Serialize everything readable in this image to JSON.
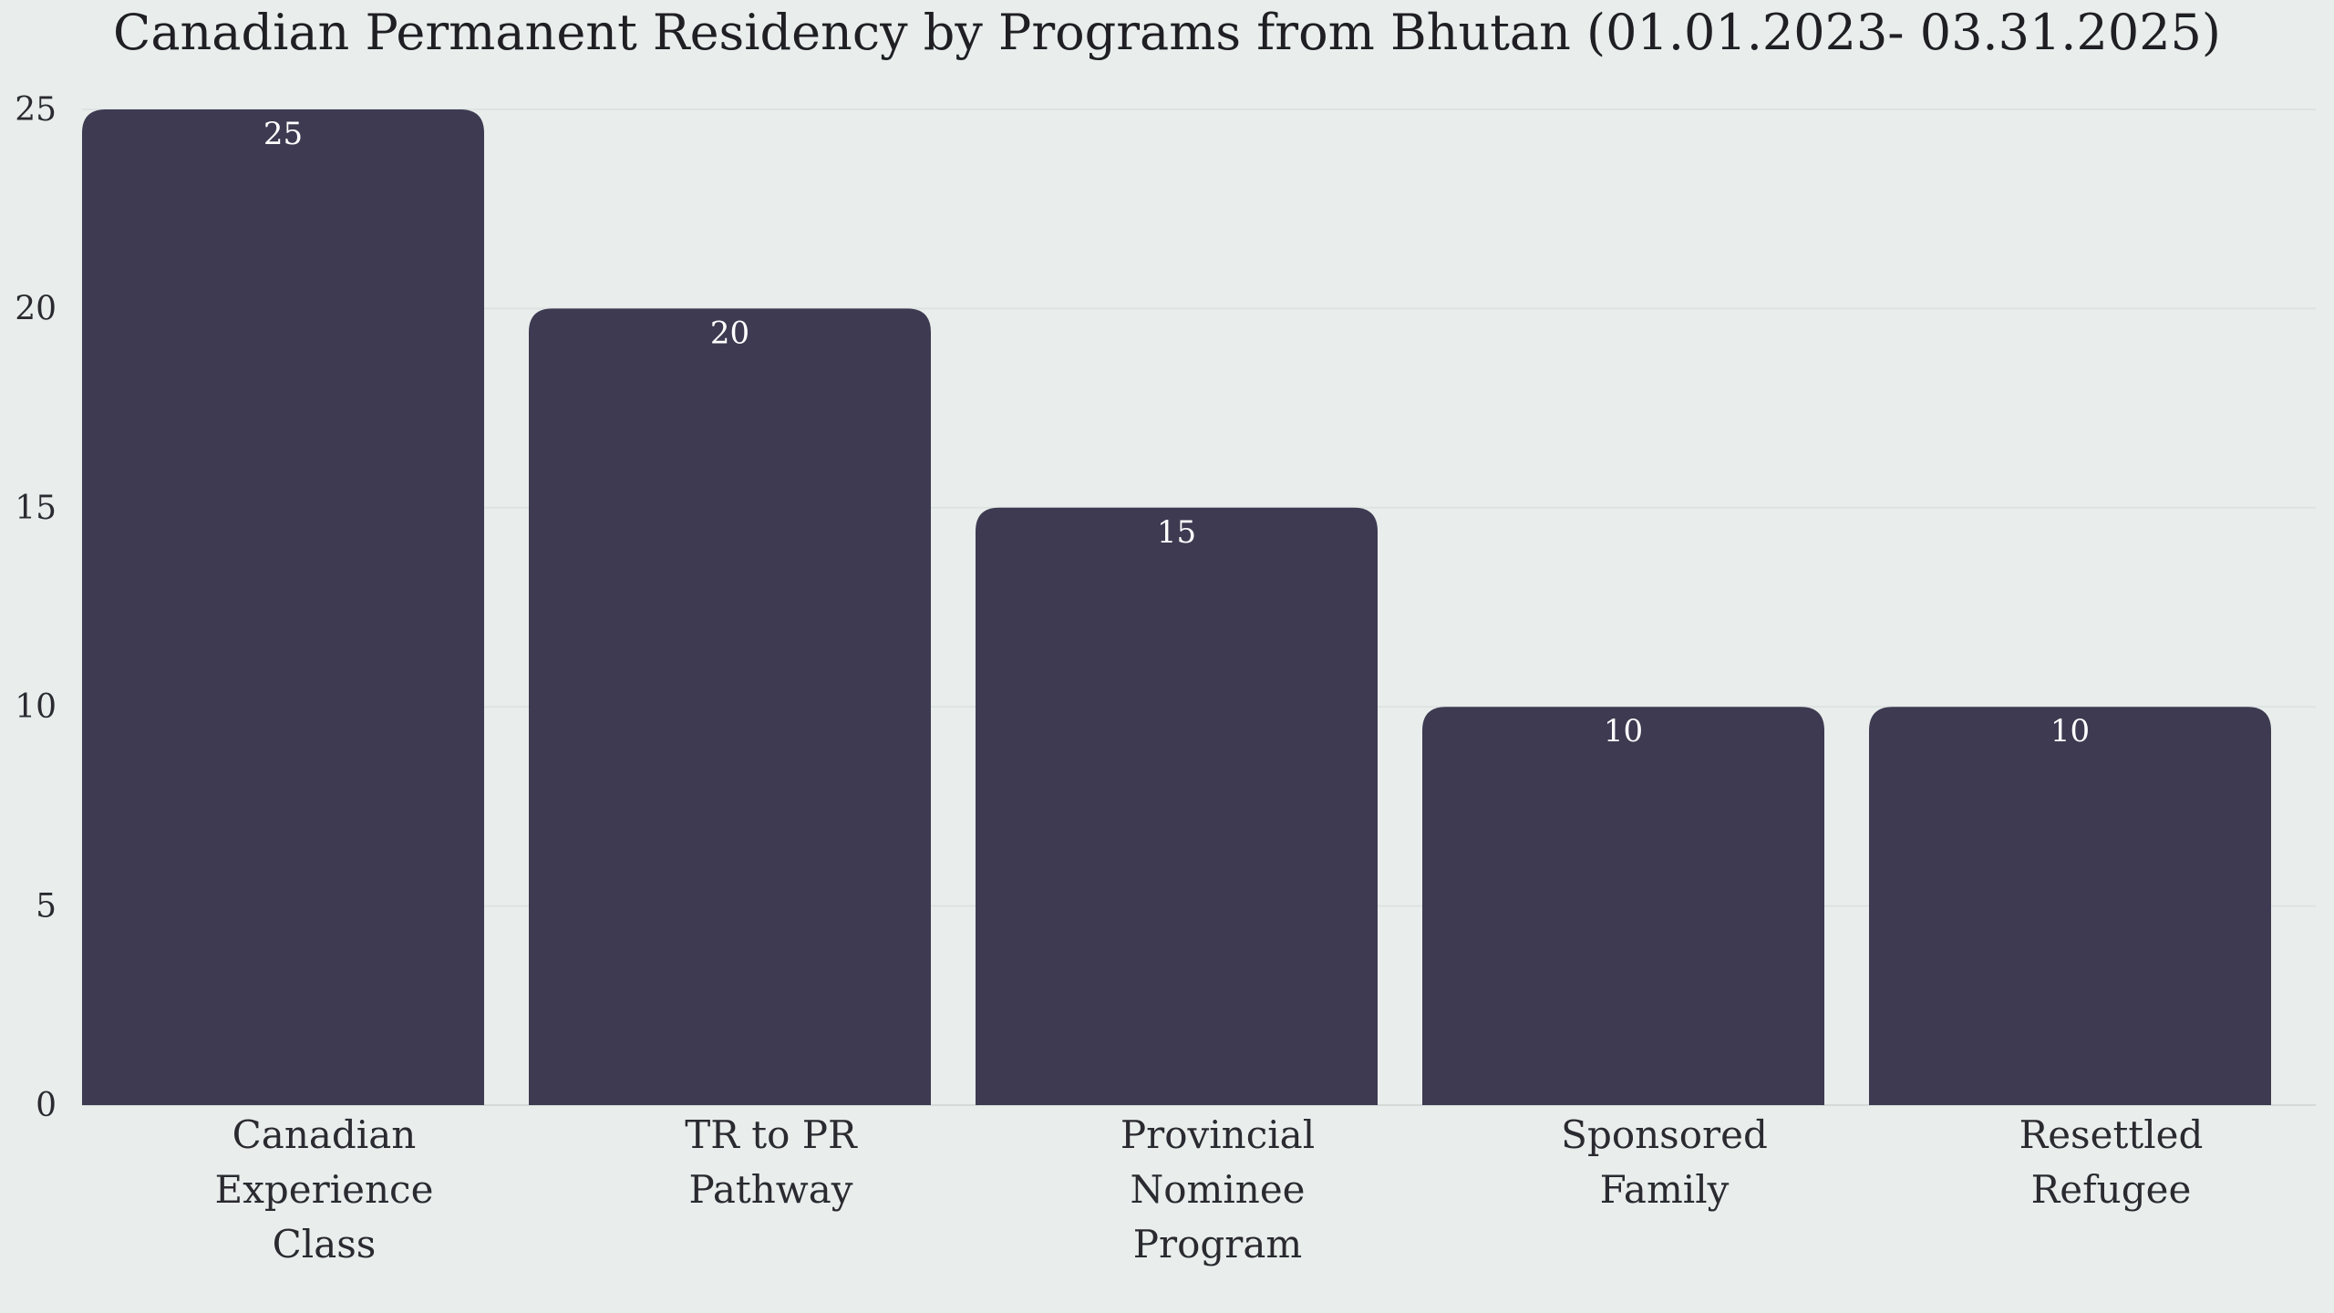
{
  "chart_data": {
    "type": "bar",
    "title": "Canadian Permanent Residency by Programs from Bhutan (01.01.2023- 03.31.2025)",
    "xlabel": "",
    "ylabel": "",
    "categories": [
      [
        "Canadian",
        "Experience",
        "Class"
      ],
      [
        "TR to PR",
        "Pathway"
      ],
      [
        "Provincial",
        "Nominee",
        "Program"
      ],
      [
        "Sponsored",
        "Family"
      ],
      [
        "Resettled",
        "Refugee"
      ]
    ],
    "values": [
      25,
      20,
      15,
      10,
      10
    ],
    "data_labels": [
      "25",
      "20",
      "15",
      "10",
      "10"
    ],
    "ylim": [
      0,
      25
    ],
    "yticks": [
      0,
      5,
      10,
      15,
      20,
      25
    ],
    "grid": true,
    "legend": "none",
    "colors": {
      "bar": "#3d3a51",
      "background": "#e9eeec",
      "label": "#ffffff"
    }
  }
}
